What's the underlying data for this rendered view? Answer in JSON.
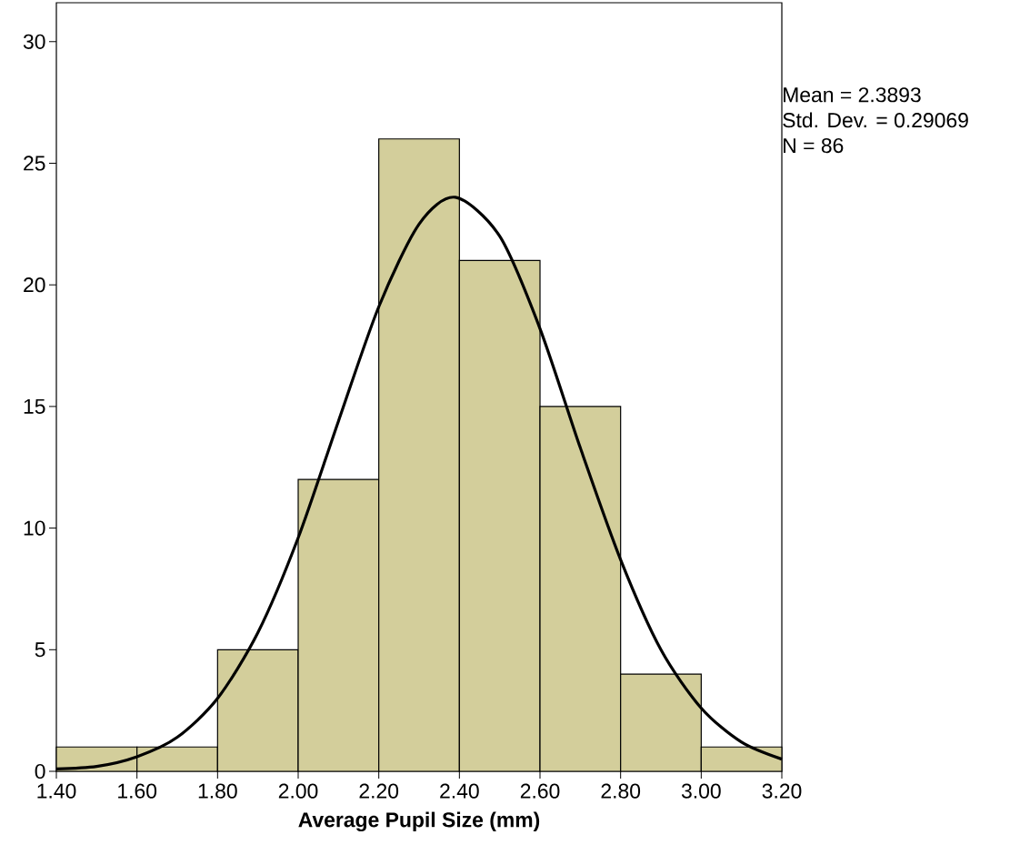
{
  "chart_data": {
    "type": "histogram",
    "xlabel": "Average Pupil Size (mm)",
    "annotations": [
      "Mean = 2.3893",
      "Std. Dev. = 0.29069",
      "N = 86"
    ],
    "series": [
      {
        "color": "#d3ce9b",
        "bins": [
          1.4,
          1.6,
          1.8,
          2.0,
          2.2,
          2.4,
          2.6,
          2.8,
          3.0,
          3.2
        ],
        "values": [
          1,
          1,
          5,
          12,
          26,
          21,
          15,
          4,
          1
        ]
      },
      {
        "type": "line",
        "color": "#000000",
        "x": [
          1.4,
          1.5,
          1.6,
          1.7,
          1.8,
          1.9,
          2.0,
          2.1,
          2.2,
          2.3,
          2.39,
          2.5,
          2.6,
          2.7,
          2.8,
          2.9,
          3.0,
          3.1,
          3.2
        ],
        "values": [
          0.1,
          0.2,
          0.6,
          1.4,
          3.0,
          5.7,
          9.6,
          14.4,
          19.1,
          22.5,
          23.6,
          22.0,
          18.2,
          13.3,
          8.7,
          5.0,
          2.6,
          1.2,
          0.5
        ]
      }
    ],
    "xlim": [
      1.4,
      3.2
    ],
    "ylim": [
      0,
      31.6
    ],
    "xticks": [
      {
        "value": 1.4,
        "label": "1.40"
      },
      {
        "value": 1.6,
        "label": "1.60"
      },
      {
        "value": 1.8,
        "label": "1.80"
      },
      {
        "value": 2.0,
        "label": "2.00"
      },
      {
        "value": 2.2,
        "label": "2.20"
      },
      {
        "value": 2.4,
        "label": "2.40"
      },
      {
        "value": 2.6,
        "label": "2.60"
      },
      {
        "value": 2.8,
        "label": "2.80"
      },
      {
        "value": 3.0,
        "label": "3.00"
      },
      {
        "value": 3.2,
        "label": "3.20"
      }
    ],
    "yticks": [
      0,
      5,
      10,
      15,
      20,
      25,
      30
    ]
  }
}
